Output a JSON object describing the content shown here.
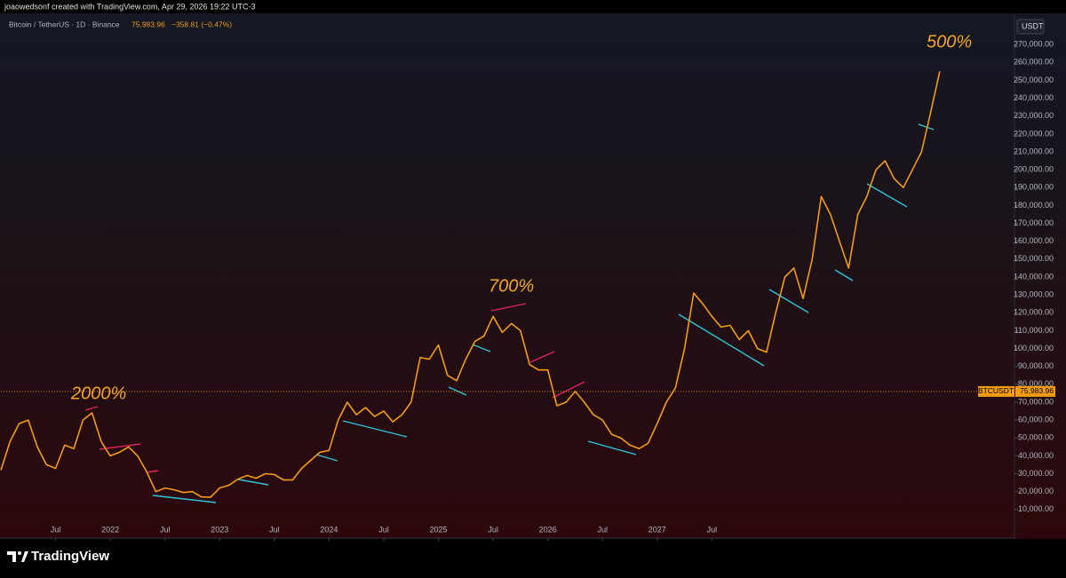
{
  "header": {
    "byline": "joaowedsonf created with TradingView.com, Apr 29, 2026 19:22 UTC-3",
    "symbol": "Bitcoin / TetherUS · 1D · Binance",
    "change": "−358.81 (−0.47%)"
  },
  "footer": {
    "brand": "TradingView"
  },
  "chart_data": {
    "type": "line",
    "color": "#f39c12",
    "x": [
      "2021-01",
      "2021-02",
      "2021-03",
      "2021-04",
      "2021-05",
      "2021-06",
      "2021-07",
      "2021-08",
      "2021-09",
      "2021-10",
      "2021-11",
      "2021-12",
      "2022-01",
      "2022-02",
      "2022-03",
      "2022-04",
      "2022-05",
      "2022-06",
      "2022-07",
      "2022-08",
      "2022-09",
      "2022-10",
      "2022-11",
      "2022-12",
      "2023-01",
      "2023-02",
      "2023-03",
      "2023-04",
      "2023-05",
      "2023-06",
      "2023-07",
      "2023-08",
      "2023-09",
      "2023-10",
      "2023-11",
      "2023-12",
      "2024-01",
      "2024-02",
      "2024-03",
      "2024-04",
      "2024-05",
      "2024-06",
      "2024-07",
      "2024-08",
      "2024-09",
      "2024-10",
      "2024-11",
      "2024-12",
      "2025-01",
      "2025-02",
      "2025-03",
      "2025-04",
      "2025-05",
      "2025-06",
      "2025-07",
      "2025-08",
      "2025-09",
      "2025-10",
      "2025-11",
      "2025-12",
      "2026-01",
      "2026-02",
      "2026-03",
      "2026-04",
      "2026-05",
      "2026-06",
      "2026-07",
      "2026-08",
      "2026-09",
      "2026-10",
      "2026-11",
      "2026-12",
      "2027-01",
      "2027-02",
      "2027-03",
      "2027-04",
      "2027-05",
      "2027-06",
      "2027-07",
      "2027-08",
      "2027-09",
      "2027-10",
      "2027-11",
      "2027-12",
      "2028-01",
      "2028-02",
      "2028-03",
      "2028-04",
      "2028-05",
      "2028-06",
      "2028-07",
      "2028-08",
      "2028-09",
      "2028-10",
      "2028-11",
      "2028-12",
      "2029-01",
      "2029-02",
      "2029-03",
      "2029-04",
      "2029-05",
      "2029-06",
      "2029-07",
      "2029-08"
    ],
    "values": [
      32000,
      48000,
      58000,
      60000,
      45000,
      35000,
      33000,
      46000,
      44000,
      60000,
      64000,
      48000,
      40000,
      42000,
      45000,
      40000,
      31000,
      20000,
      22000,
      21000,
      19500,
      20000,
      17000,
      16800,
      22000,
      23500,
      27000,
      29000,
      27500,
      30000,
      29500,
      26500,
      26500,
      33000,
      37500,
      42000,
      43000,
      60000,
      70000,
      63000,
      67000,
      62000,
      65000,
      59000,
      63000,
      70000,
      95000,
      94000,
      102000,
      85000,
      82000,
      94000,
      104000,
      107000,
      118000,
      109000,
      114000,
      110000,
      91000,
      88000,
      88000,
      68000,
      70000,
      76000,
      70000,
      63000,
      60000,
      52000,
      50000,
      46000,
      44000,
      47000,
      58000,
      70000,
      78000,
      100000,
      131000,
      125000,
      118000,
      112000,
      113000,
      105000,
      110000,
      100000,
      98000,
      120000,
      140000,
      145000,
      128000,
      150000,
      185000,
      175000,
      160000,
      145000,
      175000,
      185000,
      200000,
      205000,
      195000,
      190000,
      200000,
      210000,
      232000,
      255000
    ],
    "xlim": [
      "2021-01",
      "2030-04"
    ],
    "xticks": [
      {
        "value": "2021-07",
        "label": "Jul"
      },
      {
        "value": "2022-01",
        "label": "2022"
      },
      {
        "value": "2022-07",
        "label": "Jul"
      },
      {
        "value": "2023-01",
        "label": "2023"
      },
      {
        "value": "2023-07",
        "label": "Jul"
      },
      {
        "value": "2024-01",
        "label": "2024"
      },
      {
        "value": "2024-07",
        "label": "Jul"
      },
      {
        "value": "2025-01",
        "label": "2025"
      },
      {
        "value": "2025-07",
        "label": "Jul"
      },
      {
        "value": "2026-01",
        "label": "2026"
      },
      {
        "value": "2026-07",
        "label": "Jul"
      },
      {
        "value": "2027-01",
        "label": "2027"
      },
      {
        "value": "2027-07",
        "label": "Jul"
      }
    ],
    "ylim": [
      -5000,
      285000
    ],
    "y_axis_label": "USDT",
    "yticks": [
      {
        "value": 10000,
        "label": "10,000.00"
      },
      {
        "value": 20000,
        "label": "20,000.00"
      },
      {
        "value": 30000,
        "label": "30,000.00"
      },
      {
        "value": 40000,
        "label": "40,000.00"
      },
      {
        "value": 50000,
        "label": "50,000.00"
      },
      {
        "value": 60000,
        "label": "60,000.00"
      },
      {
        "value": 70000,
        "label": "70,000.00"
      },
      {
        "value": 80000,
        "label": "80,000.00"
      },
      {
        "value": 90000,
        "label": "90,000.00"
      },
      {
        "value": 100000,
        "label": "100,000.00"
      },
      {
        "value": 110000,
        "label": "110,000.00"
      },
      {
        "value": 120000,
        "label": "120,000.00"
      },
      {
        "value": 130000,
        "label": "130,000.00"
      },
      {
        "value": 140000,
        "label": "140,000.00"
      },
      {
        "value": 150000,
        "label": "150,000.00"
      },
      {
        "value": 160000,
        "label": "160,000.00"
      },
      {
        "value": 170000,
        "label": "170,000.00"
      },
      {
        "value": 180000,
        "label": "180,000.00"
      },
      {
        "value": 190000,
        "label": "190,000.00"
      },
      {
        "value": 200000,
        "label": "200,000.00"
      },
      {
        "value": 210000,
        "label": "210,000.00"
      },
      {
        "value": 220000,
        "label": "220,000.00"
      },
      {
        "value": 230000,
        "label": "230,000.00"
      },
      {
        "value": 240000,
        "label": "240,000.00"
      },
      {
        "value": 250000,
        "label": "250,000.00"
      },
      {
        "value": 260000,
        "label": "260,000.00"
      },
      {
        "value": 270000,
        "label": "270,000.00"
      }
    ],
    "last_price": {
      "name": "BTCUSDT",
      "value": 75983.96,
      "value_label": "75,983.96",
      "color": "#f39c12"
    },
    "annotations": [
      "2000%",
      "700%",
      "500%"
    ]
  }
}
